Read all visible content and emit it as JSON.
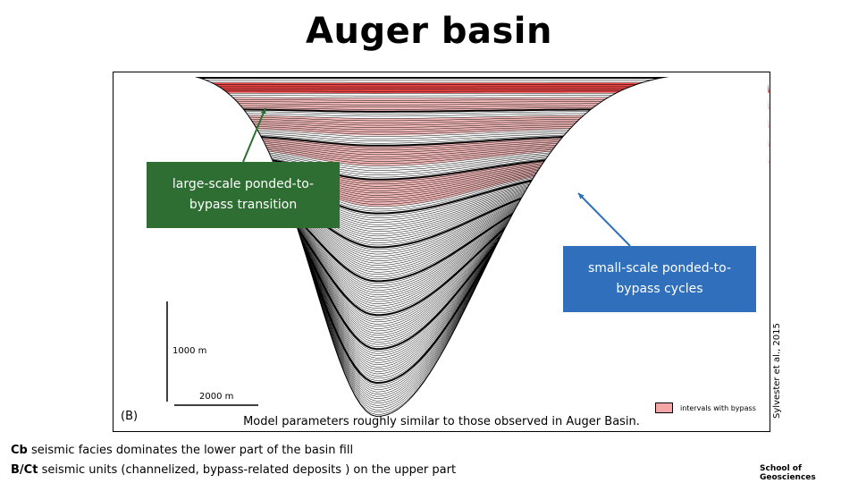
{
  "title": "Auger basin",
  "figure": {
    "panel_label": "(B)",
    "callouts": {
      "large_scale": "large-scale ponded-to-bypass transition",
      "small_scale": "small-scale ponded-to-bypass cycles"
    },
    "scale": {
      "vertical": "1000 m",
      "horizontal": "2000 m"
    },
    "legend": {
      "label": "intervals with bypass",
      "color": "#f4a6a6"
    },
    "caption": "Model parameters roughly similar to those observed in Auger Basin."
  },
  "credit": "Sylvester et al., 2015",
  "notes": [
    {
      "term": "Cb",
      "text": "seismic facies dominates the lower part of the basin fill"
    },
    {
      "term": "B/Ct",
      "text": "seismic units (channelized, bypass-related deposits ) on the upper part"
    }
  ],
  "footer": "School of Geosciences",
  "colors": {
    "bypass_light": "#f4a6a6",
    "bypass_strong": "#e83030",
    "callout_green": "#2e6e32",
    "callout_blue": "#2f6fbb"
  }
}
